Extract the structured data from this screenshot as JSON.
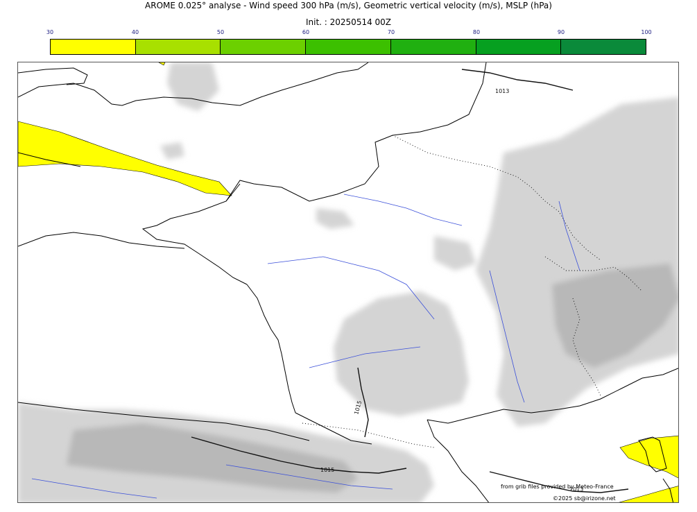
{
  "header": {
    "title": "AROME 0.025° analyse - Wind speed 300 hPa (m/s), Geometric vertical velocity (m/s), MSLP (hPa)",
    "init": "Init. : 20250514 00Z"
  },
  "colorbar": {
    "ticks": [
      "30",
      "40",
      "50",
      "60",
      "70",
      "80",
      "90",
      "100"
    ],
    "colors": [
      "#ffff00",
      "#a8e000",
      "#6cd000",
      "#3cc000",
      "#20b010",
      "#06a020",
      "#0a8a3a",
      "#07784e"
    ]
  },
  "map": {
    "isobar_labels": [
      "1013",
      "1015",
      "1015",
      "1013"
    ]
  },
  "credits": {
    "source": "from grib files provided by Meteo-France",
    "copyright": "©2025 sb@irizone.net"
  }
}
